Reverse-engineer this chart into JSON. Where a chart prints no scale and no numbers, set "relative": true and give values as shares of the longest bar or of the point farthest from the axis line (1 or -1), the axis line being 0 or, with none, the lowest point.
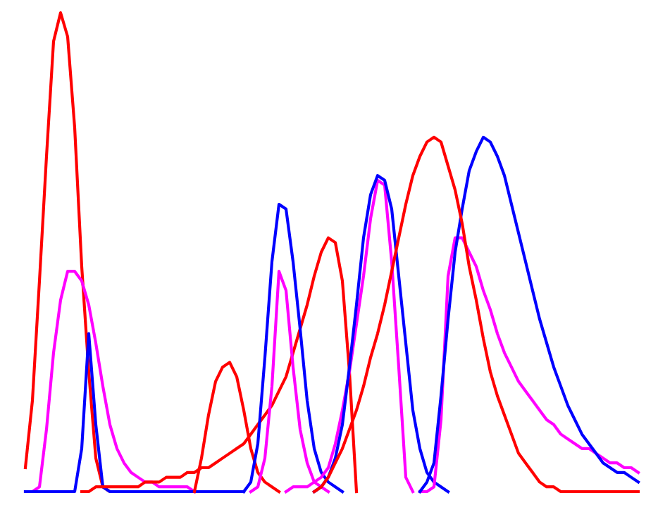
{
  "chart_data": {
    "type": "line",
    "relative": true,
    "marker": "none",
    "line_style": "solid",
    "categories": [
      null,
      null,
      null,
      null,
      null,
      null,
      null,
      null,
      null,
      null,
      null,
      null,
      null,
      null,
      null,
      null,
      null,
      null,
      null,
      null,
      null,
      null,
      null,
      null,
      null,
      null,
      null,
      null,
      null,
      null,
      null,
      null,
      null,
      null,
      null,
      null,
      null,
      null,
      null,
      null,
      null,
      null,
      null,
      null,
      null,
      null,
      null,
      null,
      null,
      null,
      null,
      null,
      null,
      null,
      null,
      null,
      null,
      null,
      null,
      null,
      null,
      null,
      null,
      null,
      null,
      null,
      null,
      null,
      null,
      null,
      null,
      null,
      null,
      null,
      null,
      null,
      null,
      null,
      null,
      null,
      null,
      null,
      null,
      null,
      null,
      null,
      null,
      null
    ],
    "series": [
      {
        "color": "#ff0000",
        "values": [
          0.05,
          0.19,
          0.44,
          0.7,
          0.94,
          1.0,
          0.95,
          0.76,
          0.47,
          0.25,
          0.07,
          0.01,
          0.0,
          0.0,
          null,
          null,
          null,
          null,
          null,
          null,
          null,
          null,
          null,
          null,
          null,
          null,
          null,
          null,
          null,
          null,
          null,
          null,
          null,
          null,
          null,
          null,
          null,
          null,
          null,
          null,
          null,
          null,
          null,
          null,
          null,
          null,
          null,
          null,
          null,
          null,
          null,
          null,
          null,
          null,
          null,
          null,
          null,
          null,
          null,
          null,
          null,
          null,
          null,
          null,
          null,
          null,
          null,
          null,
          null,
          null,
          null,
          null,
          null,
          null,
          null,
          null,
          null,
          null,
          null,
          null,
          null,
          null,
          null,
          null,
          null,
          null,
          null,
          null
        ]
      },
      {
        "color": "#ff00ff",
        "values": [
          0,
          0,
          0.01,
          0.13,
          0.29,
          0.4,
          0.46,
          0.46,
          0.44,
          0.39,
          0.31,
          0.22,
          0.14,
          0.09,
          0.06,
          0.04,
          0.03,
          0.02,
          0.02,
          0.01,
          0.01,
          0.01,
          0.01,
          0.01,
          0,
          null,
          null,
          null,
          null,
          null,
          null,
          null,
          null,
          null,
          null,
          null,
          null,
          null,
          null,
          null,
          null,
          null,
          null,
          null,
          null,
          null,
          null,
          null,
          null,
          null,
          null,
          null,
          null,
          null,
          null,
          null,
          null,
          null,
          null,
          null,
          null,
          null,
          null,
          null,
          null,
          null,
          null,
          null,
          null,
          null,
          null,
          null,
          null,
          null,
          null,
          null,
          null,
          null,
          null,
          null,
          null,
          null,
          null,
          null,
          null,
          null,
          null,
          null
        ]
      },
      {
        "color": "#0000ff",
        "values": [
          0,
          0,
          0,
          0,
          0,
          0,
          0,
          0,
          0.09,
          0.33,
          0.14,
          0.01,
          0,
          0,
          0,
          0,
          0,
          0,
          0,
          0,
          0,
          0,
          0,
          0,
          0,
          0,
          0,
          0,
          0,
          0,
          0,
          0,
          null,
          null,
          null,
          null,
          null,
          null,
          null,
          null,
          null,
          null,
          null,
          null,
          null,
          null,
          null,
          null,
          null,
          null,
          null,
          null,
          null,
          null,
          null,
          null,
          null,
          null,
          null,
          null,
          null,
          null,
          null,
          null,
          null,
          null,
          null,
          null,
          null,
          null,
          null,
          null,
          null,
          null,
          null,
          null,
          null,
          null,
          null,
          null,
          null,
          null,
          null,
          null,
          null,
          null,
          null,
          null
        ]
      },
      {
        "color": "#ff0000",
        "values": [
          null,
          null,
          null,
          null,
          null,
          null,
          null,
          null,
          null,
          null,
          null,
          null,
          null,
          null,
          null,
          null,
          null,
          null,
          null,
          null,
          null,
          null,
          null,
          null,
          0,
          0.07,
          0.16,
          0.23,
          0.26,
          0.27,
          0.24,
          0.17,
          0.09,
          0.04,
          0.02,
          0.01,
          0,
          null,
          null,
          null,
          null,
          null,
          null,
          null,
          null,
          null,
          null,
          null,
          null,
          null,
          null,
          null,
          null,
          null,
          null,
          null,
          null,
          null,
          null,
          null,
          null,
          null,
          null,
          null,
          null,
          null,
          null,
          null,
          null,
          null,
          null,
          null,
          null,
          null,
          null,
          null,
          null,
          null,
          null,
          null,
          null,
          null,
          null,
          null,
          null,
          null,
          null,
          null
        ]
      },
      {
        "color": "#ff0000",
        "values": [
          null,
          null,
          null,
          null,
          null,
          null,
          null,
          null,
          0.0,
          0.0,
          0.01,
          0.01,
          0.01,
          0.01,
          0.01,
          0.01,
          0.01,
          0.02,
          0.02,
          0.02,
          0.03,
          0.03,
          0.03,
          0.04,
          0.04,
          0.05,
          0.05,
          0.06,
          0.07,
          0.08,
          0.09,
          0.1,
          0.12,
          0.14,
          0.16,
          0.18,
          0.21,
          0.24,
          0.29,
          0.34,
          0.39,
          0.45,
          0.5,
          0.53,
          0.52,
          0.44,
          0.25,
          0.0,
          null,
          null,
          null,
          null,
          null,
          null,
          null,
          null,
          null,
          null,
          null,
          null,
          null,
          null,
          null,
          null,
          null,
          null,
          null,
          null,
          null,
          null,
          null,
          null,
          null,
          null,
          null,
          null,
          null,
          null,
          null,
          null,
          null,
          null,
          null,
          null,
          null,
          null,
          null,
          null
        ]
      },
      {
        "color": "#ff00ff",
        "values": [
          null,
          null,
          null,
          null,
          null,
          null,
          null,
          null,
          null,
          null,
          null,
          null,
          null,
          null,
          null,
          null,
          null,
          null,
          null,
          null,
          null,
          null,
          null,
          null,
          null,
          null,
          null,
          null,
          null,
          null,
          null,
          null,
          0,
          0.01,
          0.07,
          0.22,
          0.46,
          0.42,
          0.26,
          0.13,
          0.06,
          0.02,
          0.01,
          0,
          null,
          null,
          null,
          null,
          null,
          null,
          null,
          null,
          null,
          null,
          null,
          null,
          null,
          null,
          null,
          null,
          null,
          null,
          null,
          null,
          null,
          null,
          null,
          null,
          null,
          null,
          null,
          null,
          null,
          null,
          null,
          null,
          null,
          null,
          null,
          null,
          null,
          null,
          null,
          null,
          null,
          null,
          null,
          null
        ]
      },
      {
        "color": "#0000ff",
        "values": [
          null,
          null,
          null,
          null,
          null,
          null,
          null,
          null,
          null,
          null,
          null,
          null,
          null,
          null,
          null,
          null,
          null,
          null,
          null,
          null,
          null,
          null,
          null,
          null,
          null,
          null,
          null,
          null,
          null,
          null,
          null,
          0,
          0.02,
          0.1,
          0.28,
          0.48,
          0.6,
          0.59,
          0.48,
          0.34,
          0.19,
          0.09,
          0.04,
          0.02,
          0.01,
          0,
          null,
          null,
          null,
          null,
          null,
          null,
          null,
          null,
          null,
          null,
          null,
          null,
          null,
          null,
          null,
          null,
          null,
          null,
          null,
          null,
          null,
          null,
          null,
          null,
          null,
          null,
          null,
          null,
          null,
          null,
          null,
          null,
          null,
          null,
          null,
          null,
          null,
          null,
          null,
          null,
          null,
          null
        ]
      },
      {
        "color": "#ff00ff",
        "values": [
          null,
          null,
          null,
          null,
          null,
          null,
          null,
          null,
          null,
          null,
          null,
          null,
          null,
          null,
          null,
          null,
          null,
          null,
          null,
          null,
          null,
          null,
          null,
          null,
          null,
          null,
          null,
          null,
          null,
          null,
          null,
          null,
          null,
          null,
          null,
          null,
          null,
          0.0,
          0.01,
          0.01,
          0.01,
          0.02,
          0.03,
          0.05,
          0.1,
          0.17,
          0.25,
          0.35,
          0.45,
          0.57,
          0.65,
          0.64,
          0.48,
          0.26,
          0.03,
          0,
          null,
          null,
          null,
          null,
          null,
          null,
          null,
          null,
          null,
          null,
          null,
          null,
          null,
          null,
          null,
          null,
          null,
          null,
          null,
          null,
          null,
          null,
          null,
          null,
          null,
          null,
          null,
          null,
          null,
          null,
          null,
          null
        ]
      },
      {
        "color": "#0000ff",
        "values": [
          null,
          null,
          null,
          null,
          null,
          null,
          null,
          null,
          null,
          null,
          null,
          null,
          null,
          null,
          null,
          null,
          null,
          null,
          null,
          null,
          null,
          null,
          null,
          null,
          null,
          null,
          null,
          null,
          null,
          null,
          null,
          null,
          null,
          null,
          null,
          null,
          null,
          null,
          null,
          null,
          null,
          0,
          0.01,
          0.03,
          0.07,
          0.14,
          0.26,
          0.39,
          0.53,
          0.62,
          0.66,
          0.65,
          0.59,
          0.45,
          0.31,
          0.17,
          0.09,
          0.04,
          0.02,
          0.01,
          0,
          null,
          null,
          null,
          null,
          null,
          null,
          null,
          null,
          null,
          null,
          null,
          null,
          null,
          null,
          null,
          null,
          null,
          null,
          null,
          null,
          null,
          null,
          null,
          null,
          null,
          null,
          null
        ]
      },
      {
        "color": "#ff00ff",
        "values": [
          null,
          null,
          null,
          null,
          null,
          null,
          null,
          null,
          null,
          null,
          null,
          null,
          null,
          null,
          null,
          null,
          null,
          null,
          null,
          null,
          null,
          null,
          null,
          null,
          null,
          null,
          null,
          null,
          null,
          null,
          null,
          null,
          null,
          null,
          null,
          null,
          null,
          null,
          null,
          null,
          null,
          null,
          null,
          null,
          null,
          null,
          null,
          null,
          null,
          null,
          null,
          null,
          null,
          null,
          null,
          null,
          0,
          0,
          0.01,
          0.15,
          0.45,
          0.53,
          0.53,
          0.5,
          0.47,
          0.42,
          0.38,
          0.33,
          0.29,
          0.26,
          0.23,
          0.21,
          0.19,
          0.17,
          0.15,
          0.14,
          0.12,
          0.11,
          0.1,
          0.09,
          0.09,
          0.08,
          0.07,
          0.06,
          0.06,
          0.05,
          0.05,
          0.04
        ]
      },
      {
        "color": "#0000ff",
        "values": [
          null,
          null,
          null,
          null,
          null,
          null,
          null,
          null,
          null,
          null,
          null,
          null,
          null,
          null,
          null,
          null,
          null,
          null,
          null,
          null,
          null,
          null,
          null,
          null,
          null,
          null,
          null,
          null,
          null,
          null,
          null,
          null,
          null,
          null,
          null,
          null,
          null,
          null,
          null,
          null,
          null,
          null,
          null,
          null,
          null,
          null,
          null,
          null,
          null,
          null,
          null,
          null,
          null,
          null,
          null,
          null,
          0,
          0.02,
          0.06,
          0.2,
          0.36,
          0.5,
          0.59,
          0.67,
          0.71,
          0.74,
          0.73,
          0.7,
          0.66,
          0.6,
          0.54,
          0.48,
          0.42,
          0.36,
          0.31,
          0.26,
          0.22,
          0.18,
          0.15,
          0.12,
          0.1,
          0.08,
          0.06,
          0.05,
          0.04,
          0.04,
          0.03,
          0.02
        ]
      },
      {
        "color": "#ff0000",
        "values": [
          null,
          null,
          null,
          null,
          null,
          null,
          null,
          null,
          null,
          null,
          null,
          null,
          null,
          null,
          null,
          null,
          null,
          null,
          null,
          null,
          null,
          null,
          null,
          null,
          null,
          null,
          null,
          null,
          null,
          null,
          null,
          null,
          null,
          null,
          null,
          null,
          null,
          null,
          null,
          null,
          null,
          0,
          0.01,
          0.03,
          0.06,
          0.09,
          0.13,
          0.17,
          0.22,
          0.28,
          0.33,
          0.39,
          0.46,
          0.53,
          0.6,
          0.66,
          0.7,
          0.73,
          0.74,
          0.73,
          0.68,
          0.63,
          0.56,
          0.47,
          0.4,
          0.32,
          0.25,
          0.2,
          0.16,
          0.12,
          0.08,
          0.06,
          0.04,
          0.02,
          0.01,
          0.01,
          0,
          0,
          0,
          0,
          0,
          0,
          0,
          0,
          0,
          0,
          0,
          0
        ]
      }
    ]
  }
}
